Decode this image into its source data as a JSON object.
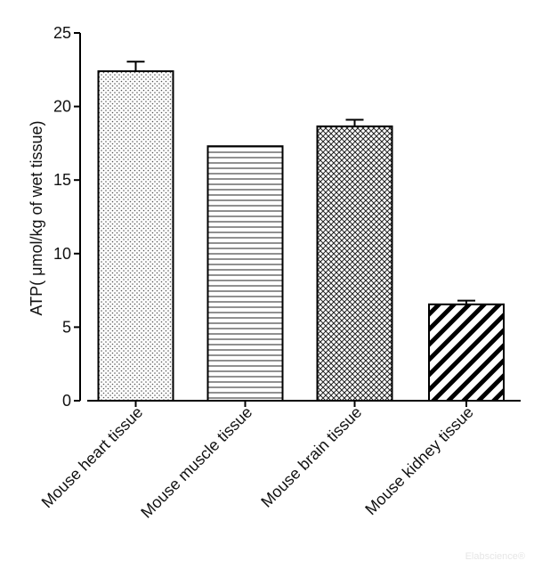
{
  "chart_data": {
    "type": "bar",
    "title": "",
    "xlabel": "",
    "ylabel": "ATP( μmol/kg of wet tissue)",
    "ylim": [
      0,
      25
    ],
    "yticks": [
      0,
      5,
      10,
      15,
      20,
      25
    ],
    "grid": false,
    "categories": [
      "Mouse heart tissue",
      "Mouse muscle tissue",
      "Mouse brain tissue",
      "Mouse kidney tissue"
    ],
    "values": [
      22.4,
      17.3,
      18.65,
      6.55
    ],
    "errors": [
      0.65,
      0,
      0.45,
      0.25
    ],
    "patterns": [
      "dots",
      "horizontal-lines",
      "crosshatch",
      "diagonal-stripes"
    ],
    "bar_color": "#000000"
  },
  "watermark": "Elabscience®"
}
